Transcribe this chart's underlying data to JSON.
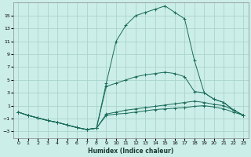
{
  "xlabel": "Humidex (Indice chaleur)",
  "bg_color": "#cceee8",
  "line_color": "#1a6b5a",
  "grid_color": "#aad4cc",
  "xlim": [
    -0.5,
    23.5
  ],
  "ylim": [
    -4,
    17
  ],
  "xticks": [
    0,
    1,
    2,
    3,
    4,
    5,
    6,
    7,
    8,
    9,
    10,
    11,
    12,
    13,
    14,
    15,
    16,
    17,
    18,
    19,
    20,
    21,
    22,
    23
  ],
  "yticks": [
    -3,
    -1,
    1,
    3,
    5,
    7,
    9,
    11,
    13,
    15
  ],
  "s1x": [
    0,
    1,
    2,
    3,
    4,
    5,
    6,
    7,
    8,
    9,
    10,
    11,
    12,
    13,
    14,
    15,
    16,
    17,
    18,
    19,
    20,
    21,
    22,
    23
  ],
  "s1y": [
    0,
    -0.5,
    -0.9,
    -1.3,
    -1.6,
    -2.0,
    -2.4,
    -2.7,
    -2.5,
    -0.5,
    -0.3,
    -0.2,
    0.0,
    0.2,
    0.4,
    0.5,
    0.6,
    0.7,
    0.9,
    1.0,
    0.8,
    0.5,
    0.0,
    -0.5
  ],
  "s2x": [
    0,
    1,
    2,
    3,
    4,
    5,
    6,
    7,
    8,
    9,
    10,
    11,
    12,
    13,
    14,
    15,
    16,
    17,
    18,
    19,
    20,
    21,
    22,
    23
  ],
  "s2y": [
    0,
    -0.5,
    -0.9,
    -1.3,
    -1.6,
    -2.0,
    -2.4,
    -2.7,
    -2.5,
    -0.3,
    0.0,
    0.3,
    0.5,
    0.7,
    0.9,
    1.1,
    1.3,
    1.5,
    1.7,
    1.5,
    1.2,
    1.0,
    0.3,
    -0.5
  ],
  "s3x": [
    0,
    1,
    2,
    3,
    4,
    5,
    6,
    7,
    8,
    9,
    10,
    11,
    12,
    13,
    14,
    15,
    16,
    17,
    18,
    19,
    20,
    21,
    22,
    23
  ],
  "s3y": [
    0,
    -0.5,
    -0.9,
    -1.3,
    -1.6,
    -2.0,
    -2.4,
    -2.7,
    -2.5,
    4.0,
    4.5,
    5.0,
    5.5,
    5.8,
    6.0,
    6.2,
    6.0,
    5.5,
    3.2,
    3.0,
    2.0,
    1.5,
    0.3,
    -0.5
  ],
  "s4x": [
    0,
    1,
    2,
    3,
    4,
    5,
    6,
    7,
    8,
    9,
    10,
    11,
    12,
    13,
    14,
    15,
    16,
    17,
    18,
    19,
    20,
    21,
    22,
    23
  ],
  "s4y": [
    0,
    -0.5,
    -0.9,
    -1.3,
    -1.6,
    -2.0,
    -2.4,
    -2.7,
    -2.5,
    4.5,
    11.0,
    13.5,
    15.0,
    15.5,
    16.0,
    16.5,
    15.5,
    14.5,
    8.0,
    3.0,
    2.0,
    1.5,
    0.3,
    -0.5
  ]
}
